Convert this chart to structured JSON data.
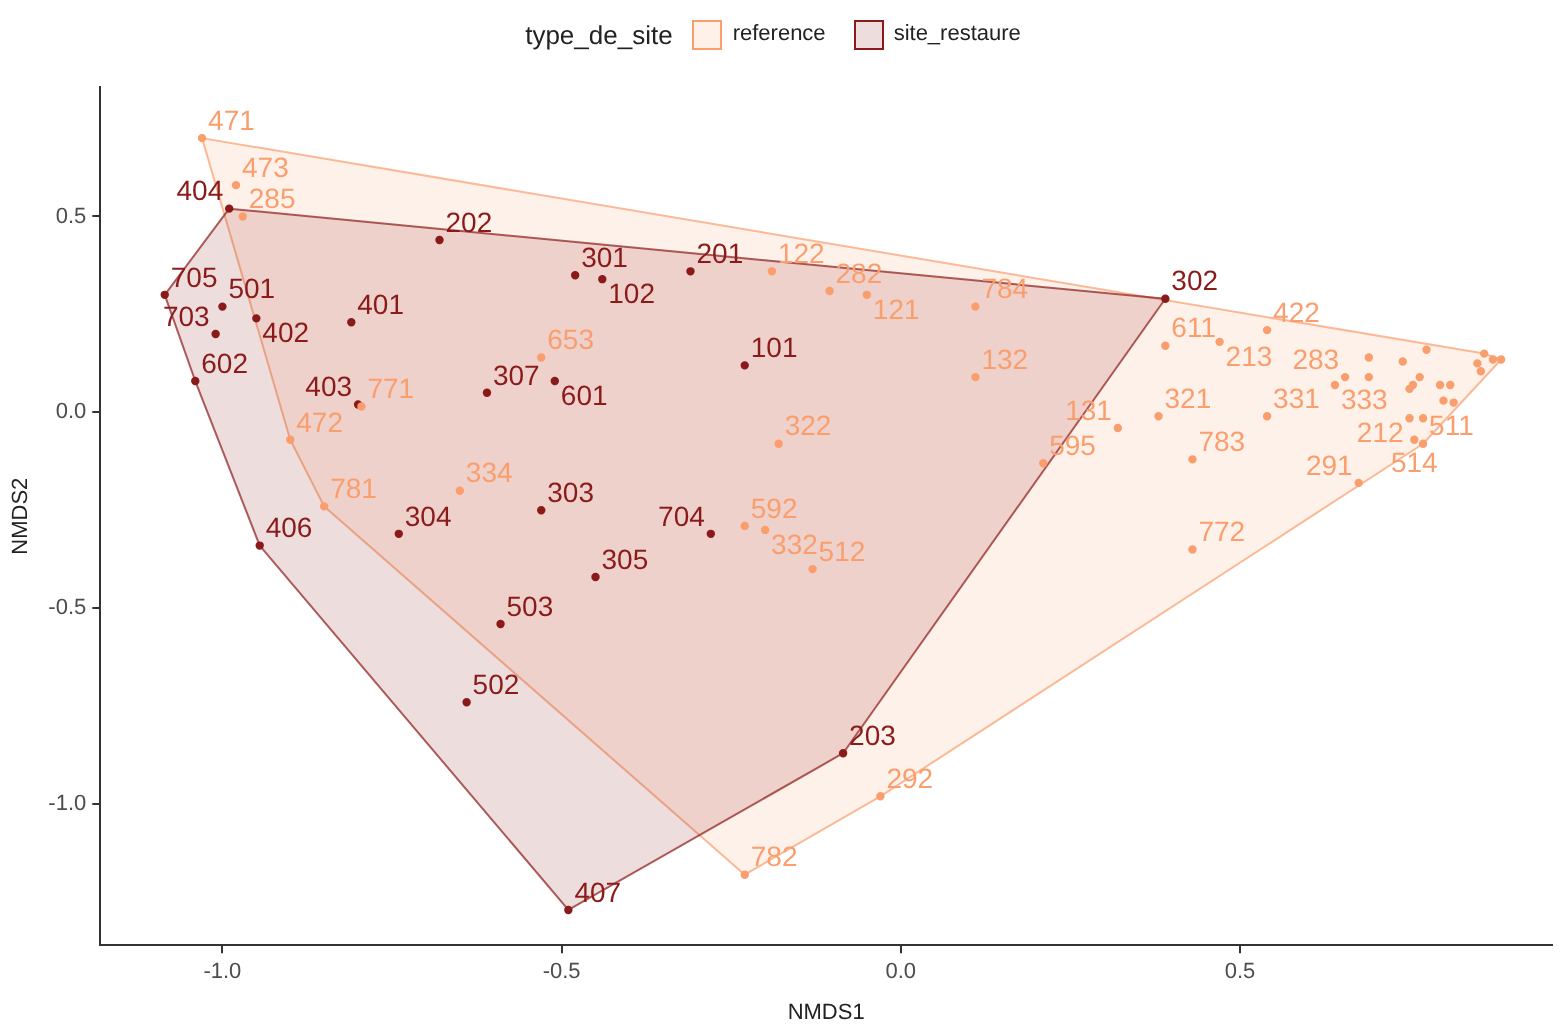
{
  "chart_data": {
    "type": "scatter",
    "xlabel": "NMDS1",
    "ylabel": "NMDS2",
    "legend_title": "type_de_site",
    "legend": "top",
    "grid": false,
    "marker": "circle",
    "xlim": [
      -1.18,
      0.96
    ],
    "ylim": [
      -1.36,
      0.83
    ],
    "xticks": [
      {
        "value": -1,
        "label": "-1.0"
      },
      {
        "value": -0.5,
        "label": "-0.5"
      },
      {
        "value": 0,
        "label": "0.0"
      },
      {
        "value": 0.5,
        "label": "0.5"
      }
    ],
    "yticks": [
      {
        "value": -1,
        "label": "-1.0"
      },
      {
        "value": -0.5,
        "label": "-0.5"
      },
      {
        "value": 0,
        "label": "0.0"
      },
      {
        "value": 0.5,
        "label": "0.5"
      }
    ],
    "series": [
      {
        "name": "reference",
        "color": "#fa9e6e",
        "x": [
          -1.03,
          -0.98,
          -0.97,
          -0.53,
          -0.9,
          -0.795,
          -0.85,
          -0.65,
          -0.19,
          -0.105,
          -0.05,
          0.11,
          0.11,
          -0.18,
          -0.23,
          -0.2,
          -0.13,
          0.21,
          0.32,
          0.39,
          0.47,
          0.38,
          0.54,
          0.43,
          0.43,
          0.54,
          0.655,
          0.64,
          0.75,
          0.757,
          0.77,
          0.675,
          -0.03,
          -0.23,
          0.69,
          0.74,
          0.775,
          0.69,
          0.77,
          0.795,
          0.81,
          0.8,
          0.815,
          0.755,
          0.75,
          0.765,
          0.86,
          0.873,
          0.885,
          0.85,
          0.855
        ],
        "values": [
          0.7,
          0.58,
          0.5,
          0.14,
          -0.07,
          0.015,
          -0.24,
          -0.2,
          0.36,
          0.31,
          0.3,
          0.27,
          0.09,
          -0.08,
          -0.29,
          -0.3,
          -0.4,
          -0.13,
          -0.04,
          0.17,
          0.18,
          -0.01,
          -0.01,
          -0.12,
          -0.35,
          0.21,
          0.09,
          0.07,
          -0.015,
          -0.07,
          -0.08,
          -0.18,
          -0.98,
          -1.18,
          0.14,
          0.13,
          0.16,
          0.09,
          -0.015,
          0.07,
          0.07,
          0.03,
          0.025,
          0.07,
          0.06,
          0.09,
          0.15,
          0.135,
          0.135,
          0.125,
          0.105
        ]
      },
      {
        "name": "site_restaure",
        "color": "#8b1a1a",
        "x": [
          -0.99,
          -0.68,
          -0.48,
          -0.44,
          -0.31,
          -0.23,
          -1.085,
          -1.0,
          -0.81,
          -0.95,
          -1.01,
          -1.04,
          -0.51,
          -0.61,
          -0.8,
          -0.53,
          -0.945,
          -0.74,
          -0.59,
          -0.64,
          -0.49,
          -0.085,
          0.39,
          -0.28,
          -0.45
        ],
        "values": [
          0.52,
          0.44,
          0.35,
          0.34,
          0.36,
          0.12,
          0.3,
          0.27,
          0.23,
          0.24,
          0.2,
          0.08,
          0.08,
          0.05,
          0.02,
          -0.25,
          -0.34,
          -0.31,
          -0.54,
          -0.74,
          -1.27,
          -0.87,
          0.29,
          -0.31,
          -0.42
        ]
      }
    ],
    "annotations": [
      {
        "text": "471",
        "x": -1.03,
        "y": 0.7
      },
      {
        "text": "473",
        "x": -0.98,
        "y": 0.58
      },
      {
        "text": "285",
        "x": -0.97,
        "y": 0.5
      },
      {
        "text": "653",
        "x": -0.53,
        "y": 0.14
      },
      {
        "text": "472",
        "x": -0.9,
        "y": -0.07
      },
      {
        "text": "771",
        "x": -0.795,
        "y": 0.015
      },
      {
        "text": "781",
        "x": -0.85,
        "y": -0.24
      },
      {
        "text": "334",
        "x": -0.65,
        "y": -0.2
      },
      {
        "text": "122",
        "x": -0.19,
        "y": 0.36
      },
      {
        "text": "282",
        "x": -0.105,
        "y": 0.31
      },
      {
        "text": "121",
        "x": -0.05,
        "y": 0.3
      },
      {
        "text": "784",
        "x": 0.11,
        "y": 0.27
      },
      {
        "text": "132",
        "x": 0.11,
        "y": 0.09
      },
      {
        "text": "322",
        "x": -0.18,
        "y": -0.08
      },
      {
        "text": "592",
        "x": -0.23,
        "y": -0.29
      },
      {
        "text": "332",
        "x": -0.2,
        "y": -0.3
      },
      {
        "text": "512",
        "x": -0.13,
        "y": -0.4
      },
      {
        "text": "595",
        "x": 0.21,
        "y": -0.13
      },
      {
        "text": "131",
        "x": 0.32,
        "y": -0.04
      },
      {
        "text": "611",
        "x": 0.39,
        "y": 0.17
      },
      {
        "text": "213",
        "x": 0.47,
        "y": 0.18
      },
      {
        "text": "321",
        "x": 0.38,
        "y": -0.01
      },
      {
        "text": "331",
        "x": 0.54,
        "y": -0.01
      },
      {
        "text": "783",
        "x": 0.43,
        "y": -0.12
      },
      {
        "text": "772",
        "x": 0.43,
        "y": -0.35
      },
      {
        "text": "422",
        "x": 0.54,
        "y": 0.21
      },
      {
        "text": "283",
        "x": 0.655,
        "y": 0.09
      },
      {
        "text": "333",
        "x": 0.64,
        "y": 0.07
      },
      {
        "text": "212",
        "x": 0.75,
        "y": -0.015
      },
      {
        "text": "514",
        "x": 0.757,
        "y": -0.07
      },
      {
        "text": "511",
        "x": 0.77,
        "y": -0.08
      },
      {
        "text": "291",
        "x": 0.675,
        "y": -0.18
      },
      {
        "text": "292",
        "x": -0.03,
        "y": -0.98
      },
      {
        "text": "782",
        "x": -0.23,
        "y": -1.18
      },
      {
        "text": "404",
        "x": -0.99,
        "y": 0.52
      },
      {
        "text": "202",
        "x": -0.68,
        "y": 0.44
      },
      {
        "text": "301",
        "x": -0.48,
        "y": 0.35
      },
      {
        "text": "102",
        "x": -0.44,
        "y": 0.34
      },
      {
        "text": "201",
        "x": -0.31,
        "y": 0.36
      },
      {
        "text": "101",
        "x": -0.23,
        "y": 0.12
      },
      {
        "text": "705",
        "x": -1.085,
        "y": 0.3
      },
      {
        "text": "501",
        "x": -1.0,
        "y": 0.27
      },
      {
        "text": "401",
        "x": -0.81,
        "y": 0.23
      },
      {
        "text": "402",
        "x": -0.95,
        "y": 0.24
      },
      {
        "text": "703",
        "x": -1.01,
        "y": 0.2
      },
      {
        "text": "602",
        "x": -1.04,
        "y": 0.08
      },
      {
        "text": "601",
        "x": -0.51,
        "y": 0.08
      },
      {
        "text": "307",
        "x": -0.61,
        "y": 0.05
      },
      {
        "text": "403",
        "x": -0.8,
        "y": 0.02
      },
      {
        "text": "303",
        "x": -0.53,
        "y": -0.25
      },
      {
        "text": "406",
        "x": -0.945,
        "y": -0.34
      },
      {
        "text": "304",
        "x": -0.74,
        "y": -0.31
      },
      {
        "text": "503",
        "x": -0.59,
        "y": -0.54
      },
      {
        "text": "502",
        "x": -0.64,
        "y": -0.74
      },
      {
        "text": "407",
        "x": -0.49,
        "y": -1.27
      },
      {
        "text": "203",
        "x": -0.085,
        "y": -0.87
      },
      {
        "text": "302",
        "x": 0.39,
        "y": 0.29
      },
      {
        "text": "704",
        "x": -0.28,
        "y": -0.31
      },
      {
        "text": "305",
        "x": -0.45,
        "y": -0.42
      }
    ]
  }
}
